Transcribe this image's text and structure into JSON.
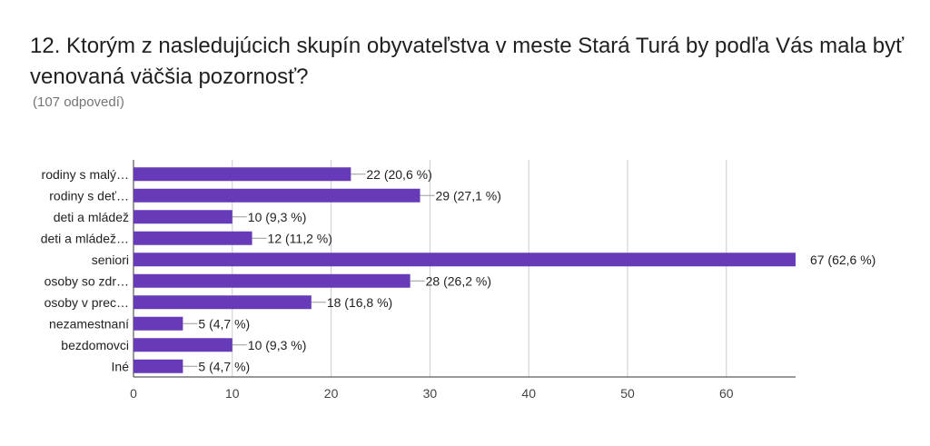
{
  "title": "12. Ktorým z nasledujúcich skupín obyvateľstva v meste Stará Turá by podľa Vás mala byť venovaná väčšia pozornosť?",
  "subtitle": "(107 odpovedí)",
  "colors": {
    "bar": "#673ab7",
    "grid": "#cccccc",
    "axis": "#333333",
    "leader": "#999999"
  },
  "chart_data": {
    "type": "bar",
    "orientation": "horizontal",
    "categories": [
      "rodiny s malý…",
      "rodiny s deť…",
      "deti a mládež",
      "deti a mládež…",
      "seniori",
      "osoby so zdr…",
      "osoby v prec…",
      "nezamestnaní",
      "bezdomovci",
      "Iné"
    ],
    "values": [
      22,
      29,
      10,
      12,
      67,
      28,
      18,
      5,
      10,
      5
    ],
    "value_labels": [
      "22 (20,6 %)",
      "29 (27,1 %)",
      "10 (9,3 %)",
      "12 (11,2 %)",
      "67 (62,6 %)",
      "28 (26,2 %)",
      "18 (16,8 %)",
      "5 (4,7 %)",
      "10 (9,3 %)",
      "5 (4,7 %)"
    ],
    "xticks": [
      0,
      10,
      20,
      30,
      40,
      50,
      60
    ],
    "xlim": [
      0,
      67
    ],
    "grid": true,
    "legend": "none"
  }
}
